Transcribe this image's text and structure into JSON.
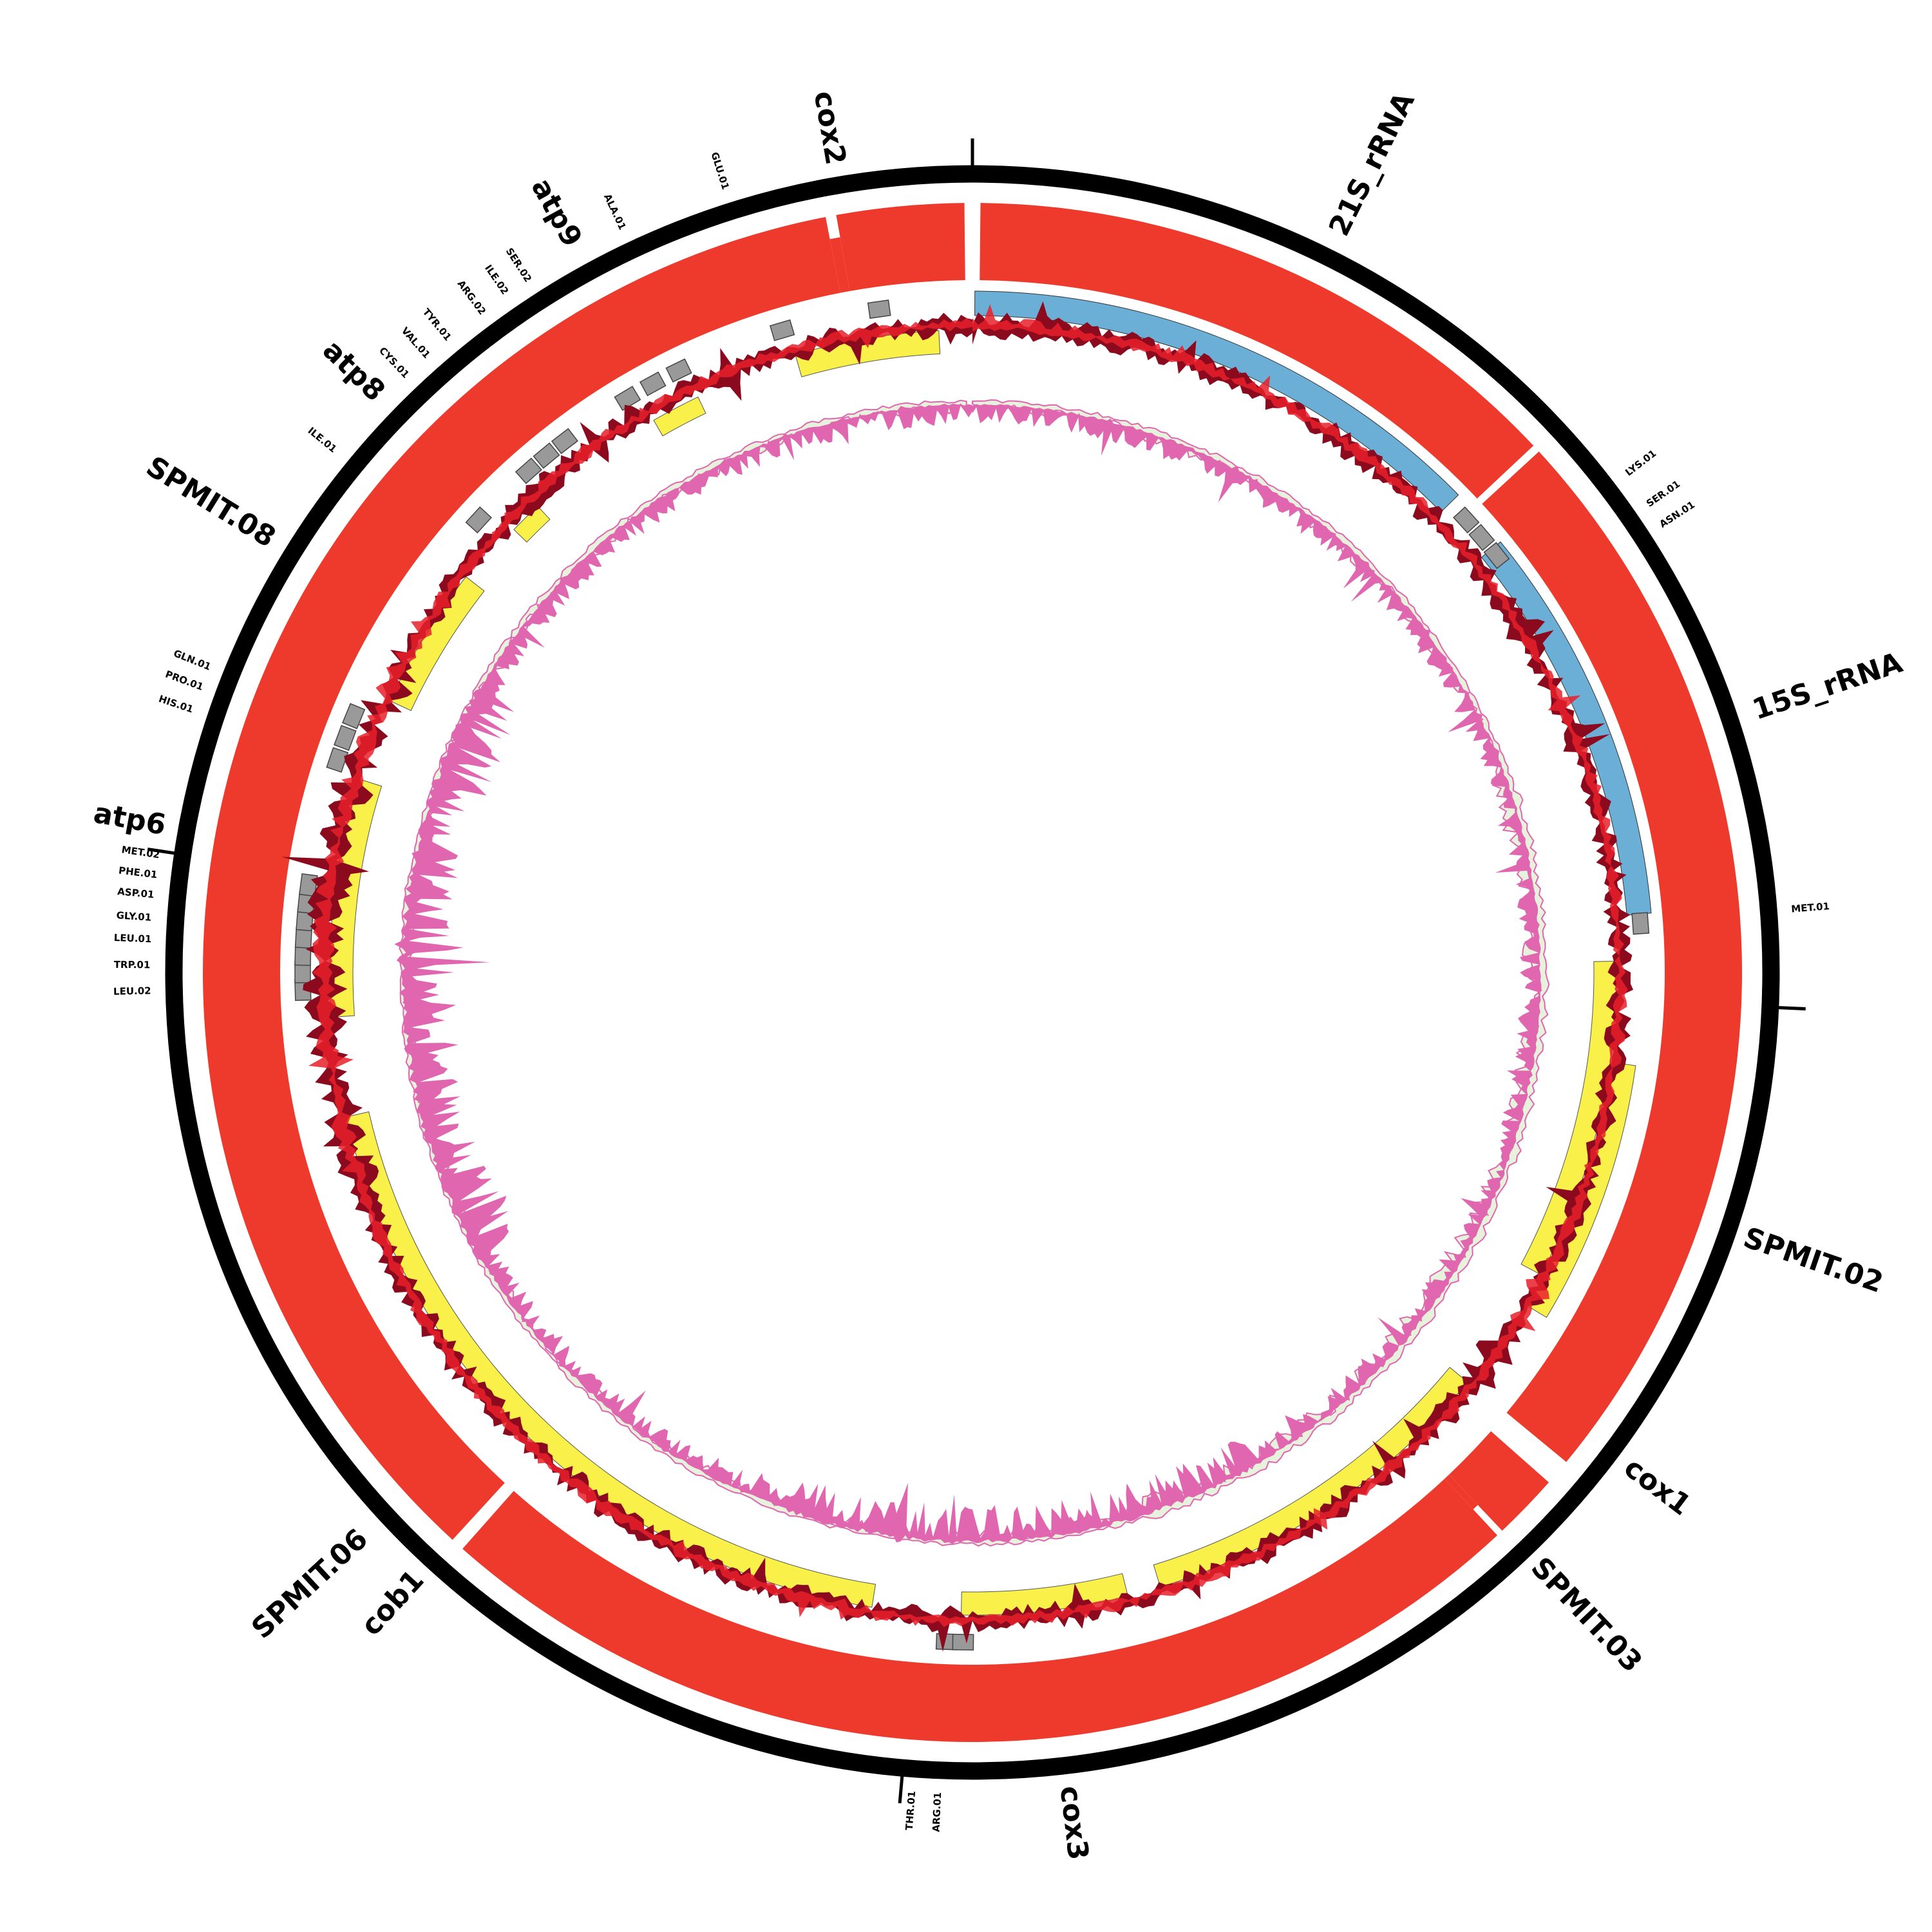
{
  "genes": [
    "cox2",
    "21S_rRNA",
    "15S_rRNA",
    "SPMIT.02",
    "cox1",
    "SPMIT.03",
    "cox3",
    "cob1",
    "SPMIT.06",
    "atp6",
    "SPMIT.08",
    "atp8",
    "atp9"
  ],
  "trnas": [
    "GLU.01",
    "ALA.01",
    "SER.02",
    "ILE.02",
    "ARG.02",
    "TYR.01",
    "VAL.01",
    "CYS.01",
    "ILE.01",
    "LYS.01",
    "SER.01",
    "ASN.01",
    "MET.01",
    "GLN.01",
    "PRO.01",
    "HIS.01",
    "LEU.02",
    "TRP.01",
    "LEU.01",
    "GLY.01",
    "ASP.01",
    "PHE.01",
    "MET.02",
    "THR.01",
    "ARG.01"
  ]
}
